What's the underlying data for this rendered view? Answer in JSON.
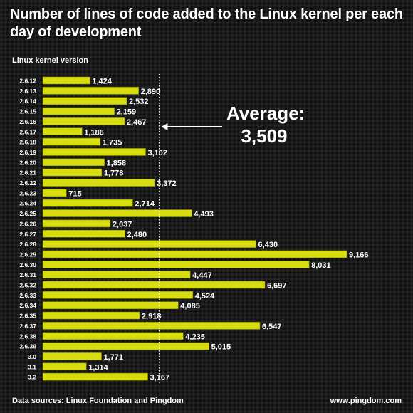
{
  "chart_data": {
    "type": "bar",
    "orientation": "horizontal",
    "title": "Number of lines of code added to the Linux kernel per each day of development",
    "ylabel": "Linux kernel version",
    "categories": [
      "2.6.12",
      "2.6.13",
      "2.6.14",
      "2.6.15",
      "2.6.16",
      "2.6.17",
      "2.6.18",
      "2.6.19",
      "2.6.20",
      "2.6.21",
      "2.6.22",
      "2.6.23",
      "2.6.24",
      "2.6.25",
      "2.6.26",
      "2.6.27",
      "2.6.28",
      "2.6.29",
      "2.6.30",
      "2.6.31",
      "2.6.32",
      "2.6.33",
      "2.6.34",
      "2.6.35",
      "2.6.37",
      "2.6.38",
      "2.6.39",
      "3.0",
      "3.1",
      "3.2"
    ],
    "values": [
      1424,
      2890,
      2532,
      2159,
      2467,
      1186,
      1735,
      3102,
      1858,
      1778,
      3372,
      715,
      2714,
      4493,
      2037,
      2480,
      6430,
      9166,
      8031,
      4447,
      6697,
      4524,
      4085,
      2918,
      6547,
      4235,
      5015,
      1771,
      1314,
      3167
    ],
    "value_labels": [
      "1,424",
      "2,890",
      "2,532",
      "2,159",
      "2,467",
      "1,186",
      "1,735",
      "3,102",
      "1,858",
      "1,778",
      "3,372",
      "715",
      "2,714",
      "4,493",
      "2,037",
      "2,480",
      "6,430",
      "9,166",
      "8,031",
      "4,447",
      "6,697",
      "4,524",
      "4,085",
      "2,918",
      "6,547",
      "4,235",
      "5,015",
      "1,771",
      "1,314",
      "3,167"
    ],
    "average": 3509,
    "average_label": "Average:",
    "average_value_label": "3,509",
    "xlim": [
      0,
      9166
    ],
    "grid": false,
    "bar_color": "#d7dd0e",
    "background_color": "#1a1a1a"
  },
  "footer": {
    "sources": "Data sources: Linux Foundation and Pingdom",
    "website": "www.pingdom.com"
  }
}
